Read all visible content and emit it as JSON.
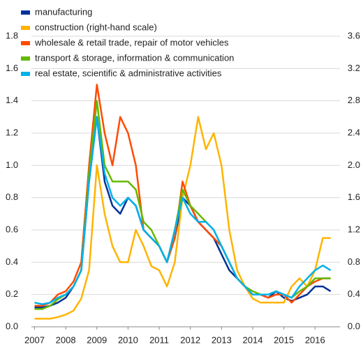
{
  "chart_data": {
    "type": "line",
    "x": [
      2007,
      2007.25,
      2007.5,
      2007.75,
      2008,
      2008.25,
      2008.5,
      2008.75,
      2009,
      2009.25,
      2009.5,
      2009.75,
      2010,
      2010.25,
      2010.5,
      2010.75,
      2011,
      2011.25,
      2011.5,
      2011.75,
      2012,
      2012.25,
      2012.5,
      2012.75,
      2013,
      2013.25,
      2013.5,
      2013.75,
      2014,
      2014.25,
      2014.5,
      2014.75,
      2015,
      2015.25,
      2015.5,
      2015.75,
      2016,
      2016.25,
      2016.5
    ],
    "xlim": [
      2006.9,
      2016.8
    ],
    "xticks": [
      2007,
      2008,
      2009,
      2010,
      2011,
      2012,
      2013,
      2014,
      2015,
      2016
    ],
    "ylim": [
      0,
      1.8
    ],
    "yticks": [
      {
        "value": 0,
        "label": "0.0"
      },
      0.2,
      0.4,
      0.6,
      0.8,
      {
        "value": 1,
        "label": "1.0"
      },
      1.2,
      1.4,
      1.6,
      1.8
    ],
    "y2lim": [
      0,
      3.6
    ],
    "y2ticks": [
      {
        "value": 0,
        "label": "0.0"
      },
      0.4,
      0.8,
      1.2,
      1.6,
      {
        "value": 2,
        "label": "2.0"
      },
      2.4,
      2.8,
      3.2,
      3.6
    ],
    "grid": true,
    "legend": "top-left",
    "series": [
      {
        "name": "manufacturing",
        "color": "#003299",
        "values": [
          0.12,
          0.12,
          0.13,
          0.15,
          0.18,
          0.25,
          0.35,
          0.9,
          1.3,
          0.9,
          0.75,
          0.7,
          0.8,
          0.75,
          0.6,
          0.55,
          0.5,
          0.4,
          0.55,
          0.8,
          0.75,
          0.65,
          0.6,
          0.55,
          0.45,
          0.35,
          0.3,
          0.25,
          0.2,
          0.2,
          0.18,
          0.22,
          0.18,
          0.16,
          0.18,
          0.2,
          0.25,
          0.25,
          0.22
        ]
      },
      {
        "name": "construction (right-hand scale)",
        "color": "#ffb400",
        "axis": "y2",
        "values": [
          0.1,
          0.1,
          0.1,
          0.12,
          0.15,
          0.2,
          0.35,
          0.7,
          2.0,
          1.4,
          1.0,
          0.8,
          0.8,
          1.2,
          1.0,
          0.75,
          0.7,
          0.5,
          0.8,
          1.6,
          2.0,
          2.6,
          2.2,
          2.4,
          2.0,
          1.2,
          0.7,
          0.5,
          0.35,
          0.3,
          0.3,
          0.3,
          0.3,
          0.5,
          0.6,
          0.5,
          0.7,
          1.1,
          1.1
        ]
      },
      {
        "name": "wholesale & retail trade, repair of motor vehicles",
        "color": "#ff4b00",
        "values": [
          0.13,
          0.13,
          0.15,
          0.2,
          0.22,
          0.28,
          0.4,
          1.0,
          1.5,
          1.2,
          1.0,
          1.3,
          1.2,
          1.0,
          0.6,
          0.55,
          0.5,
          0.4,
          0.55,
          0.9,
          0.75,
          0.65,
          0.6,
          0.55,
          0.5,
          0.4,
          0.3,
          0.25,
          0.2,
          0.2,
          0.18,
          0.2,
          0.2,
          0.15,
          0.2,
          0.25,
          0.28,
          0.3,
          0.3
        ]
      },
      {
        "name": "transport & storage, information & communication",
        "color": "#65b800",
        "values": [
          0.11,
          0.11,
          0.13,
          0.17,
          0.2,
          0.25,
          0.35,
          0.95,
          1.4,
          1.0,
          0.9,
          0.9,
          0.9,
          0.85,
          0.65,
          0.6,
          0.5,
          0.4,
          0.6,
          0.85,
          0.75,
          0.7,
          0.65,
          0.6,
          0.5,
          0.4,
          0.3,
          0.25,
          0.22,
          0.2,
          0.2,
          0.22,
          0.2,
          0.18,
          0.22,
          0.25,
          0.3,
          0.3,
          0.3
        ]
      },
      {
        "name": "real estate, scientific & administrative activities",
        "color": "#00b1ea",
        "values": [
          0.15,
          0.14,
          0.15,
          0.18,
          0.2,
          0.25,
          0.35,
          0.9,
          1.3,
          0.95,
          0.8,
          0.75,
          0.8,
          0.75,
          0.6,
          0.55,
          0.5,
          0.4,
          0.6,
          0.8,
          0.7,
          0.65,
          0.65,
          0.6,
          0.5,
          0.4,
          0.3,
          0.25,
          0.2,
          0.2,
          0.2,
          0.22,
          0.2,
          0.18,
          0.25,
          0.3,
          0.35,
          0.38,
          0.35
        ]
      }
    ]
  }
}
